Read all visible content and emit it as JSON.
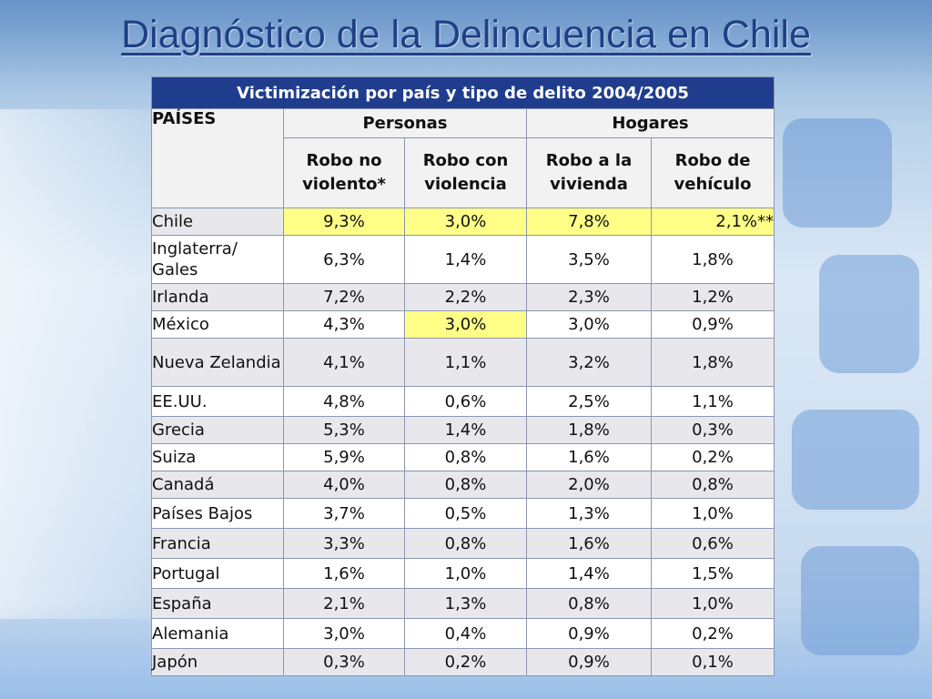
{
  "slide": {
    "title": "Diagnóstico de la Delincuencia en Chile"
  },
  "table": {
    "caption": "Victimización por país y tipo de delito 2004/2005",
    "paises_header": "PAÍSES",
    "groups": {
      "personas": "Personas",
      "hogares": "Hogares"
    },
    "columns": [
      "Robo no violento*",
      "Robo con violencia",
      "Robo a la vivienda",
      "Robo de vehículo"
    ],
    "rows": [
      {
        "country": "Chile",
        "values": [
          "9,3%",
          "3,0%",
          "7,8%",
          "2,1%**"
        ]
      },
      {
        "country": "Inglaterra/ Gales",
        "values": [
          "6,3%",
          "1,4%",
          "3,5%",
          "1,8%"
        ]
      },
      {
        "country": "Irlanda",
        "values": [
          "7,2%",
          "2,2%",
          "2,3%",
          "1,2%"
        ]
      },
      {
        "country": "México",
        "values": [
          "4,3%",
          "3,0%",
          "3,0%",
          "0,9%"
        ]
      },
      {
        "country": "Nueva Zelandia",
        "values": [
          "4,1%",
          "1,1%",
          "3,2%",
          "1,8%"
        ]
      },
      {
        "country": "EE.UU.",
        "values": [
          "4,8%",
          "0,6%",
          "2,5%",
          "1,1%"
        ]
      },
      {
        "country": "Grecia",
        "values": [
          "5,3%",
          "1,4%",
          "1,8%",
          "0,3%"
        ]
      },
      {
        "country": "Suiza",
        "values": [
          "5,9%",
          "0,8%",
          "1,6%",
          "0,2%"
        ]
      },
      {
        "country": "Canadá",
        "values": [
          "4,0%",
          "0,8%",
          "2,0%",
          "0,8%"
        ]
      },
      {
        "country": "Países Bajos",
        "values": [
          "3,7%",
          "0,5%",
          "1,3%",
          "1,0%"
        ]
      },
      {
        "country": "Francia",
        "values": [
          "3,3%",
          "0,8%",
          "1,6%",
          "0,6%"
        ]
      },
      {
        "country": "Portugal",
        "values": [
          "1,6%",
          "1,0%",
          "1,4%",
          "1,5%"
        ]
      },
      {
        "country": "España",
        "values": [
          "2,1%",
          "1,3%",
          "0,8%",
          "1,0%"
        ]
      },
      {
        "country": "Alemania",
        "values": [
          "3,0%",
          "0,4%",
          "0,9%",
          "0,2%"
        ]
      },
      {
        "country": "Japón",
        "values": [
          "0,3%",
          "0,2%",
          "0,9%",
          "0,1%"
        ]
      }
    ],
    "highlight_color": "#ffff88"
  }
}
